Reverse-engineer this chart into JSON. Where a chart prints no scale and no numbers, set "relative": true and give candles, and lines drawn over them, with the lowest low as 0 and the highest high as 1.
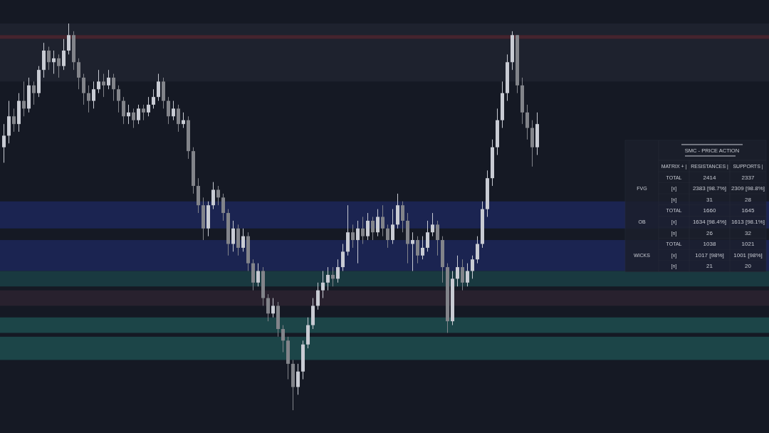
{
  "chart_data": [
    {
      "type": "candlestick",
      "relative": true,
      "colors": [
        "#c8cbd3",
        "#c8cbd3",
        "#82848a",
        "#c8cbd3",
        "#82848a",
        "#c8cbd3",
        "#82848a",
        "#c8cbd3",
        "#c8cbd3",
        "#82848a",
        "#c8cbd3",
        "#82848a",
        "#c8cbd3",
        "#c8cbd3",
        "#82848a",
        "#82848a",
        "#82848a",
        "#82848a",
        "#c8cbd3",
        "#c8cbd3",
        "#82848a",
        "#c8cbd3",
        "#82848a",
        "#82848a",
        "#82848a",
        "#c8cbd3",
        "#82848a",
        "#c8cbd3",
        "#82848a",
        "#c8cbd3",
        "#c8cbd3",
        "#c8cbd3",
        "#82848a",
        "#82848a",
        "#c8cbd3",
        "#82848a",
        "#c8cbd3",
        "#82848a",
        "#82848a",
        "#82848a",
        "#82848a",
        "#c8cbd3",
        "#c8cbd3",
        "#82848a",
        "#82848a",
        "#82848a",
        "#c8cbd3",
        "#82848a",
        "#c8cbd3",
        "#82848a",
        "#82848a",
        "#c8cbd3",
        "#82848a",
        "#82848a",
        "#c8cbd3",
        "#82848a",
        "#82848a",
        "#82848a",
        "#82848a",
        "#c8cbd3",
        "#c8cbd3",
        "#c8cbd3",
        "#c8cbd3",
        "#c8cbd3",
        "#c8cbd3",
        "#c8cbd3",
        "#82848a",
        "#c8cbd3",
        "#c8cbd3",
        "#c8cbd3",
        "#82848a",
        "#c8cbd3",
        "#82848a",
        "#c8cbd3",
        "#82848a",
        "#c8cbd3",
        "#82848a",
        "#82848a",
        "#c8cbd3",
        "#c8cbd3",
        "#82848a",
        "#82848a",
        "#c8cbd3",
        "#82848a",
        "#c8cbd3",
        "#c8cbd3",
        "#c8cbd3",
        "#82848a",
        "#82848a",
        "#82848a",
        "#c8cbd3",
        "#c8cbd3",
        "#82848a",
        "#c8cbd3",
        "#c8cbd3",
        "#c8cbd3",
        "#c8cbd3",
        "#c8cbd3",
        "#c8cbd3",
        "#c8cbd3",
        "#c8cbd3",
        "#c8cbd3",
        "#c8cbd3",
        "#82848a",
        "#82848a",
        "#82848a",
        "#82848a",
        "#c8cbd3"
      ],
      "categories": [
        null,
        null,
        null,
        null,
        null,
        null,
        null,
        null,
        null,
        null,
        null,
        null,
        null,
        null,
        null,
        null,
        null,
        null,
        null,
        null,
        null,
        null,
        null,
        null,
        null,
        null,
        null,
        null,
        null,
        null,
        null,
        null,
        null,
        null,
        null,
        null,
        null,
        null,
        null,
        null,
        null,
        null,
        null,
        null,
        null,
        null,
        null,
        null,
        null,
        null,
        null,
        null,
        null,
        null,
        null,
        null,
        null,
        null,
        null,
        null,
        null,
        null,
        null,
        null,
        null,
        null,
        null,
        null,
        null,
        null,
        null,
        null,
        null,
        null,
        null,
        null,
        null,
        null,
        null,
        null,
        null,
        null,
        null,
        null,
        null,
        null,
        null,
        null,
        null,
        null,
        null,
        null,
        null,
        null,
        null,
        null,
        null,
        null,
        null,
        null,
        null,
        null,
        null,
        null,
        null,
        null,
        null,
        null
      ],
      "ohlc": [
        [
          0.68,
          0.74,
          0.64,
          0.71
        ],
        [
          0.71,
          0.8,
          0.69,
          0.76
        ],
        [
          0.76,
          0.78,
          0.72,
          0.74
        ],
        [
          0.74,
          0.82,
          0.72,
          0.8
        ],
        [
          0.8,
          0.85,
          0.76,
          0.78
        ],
        [
          0.78,
          0.86,
          0.77,
          0.84
        ],
        [
          0.84,
          0.85,
          0.79,
          0.82
        ],
        [
          0.82,
          0.89,
          0.81,
          0.88
        ],
        [
          0.88,
          0.95,
          0.86,
          0.93
        ],
        [
          0.93,
          0.94,
          0.88,
          0.9
        ],
        [
          0.9,
          0.93,
          0.87,
          0.91
        ],
        [
          0.91,
          0.92,
          0.86,
          0.89
        ],
        [
          0.89,
          0.96,
          0.88,
          0.93
        ],
        [
          0.93,
          1.0,
          0.92,
          0.97
        ],
        [
          0.97,
          0.98,
          0.88,
          0.9
        ],
        [
          0.9,
          0.91,
          0.83,
          0.86
        ],
        [
          0.86,
          0.87,
          0.79,
          0.82
        ],
        [
          0.82,
          0.84,
          0.77,
          0.8
        ],
        [
          0.8,
          0.85,
          0.78,
          0.83
        ],
        [
          0.83,
          0.88,
          0.82,
          0.85
        ],
        [
          0.85,
          0.87,
          0.81,
          0.84
        ],
        [
          0.84,
          0.88,
          0.83,
          0.86
        ],
        [
          0.86,
          0.87,
          0.8,
          0.83
        ],
        [
          0.83,
          0.84,
          0.77,
          0.8
        ],
        [
          0.8,
          0.81,
          0.74,
          0.76
        ],
        [
          0.76,
          0.79,
          0.74,
          0.77
        ],
        [
          0.77,
          0.78,
          0.73,
          0.75
        ],
        [
          0.75,
          0.79,
          0.74,
          0.78
        ],
        [
          0.78,
          0.79,
          0.75,
          0.77
        ],
        [
          0.77,
          0.81,
          0.76,
          0.79
        ],
        [
          0.79,
          0.83,
          0.78,
          0.81
        ],
        [
          0.81,
          0.87,
          0.8,
          0.85
        ],
        [
          0.85,
          0.86,
          0.78,
          0.8
        ],
        [
          0.8,
          0.81,
          0.74,
          0.76
        ],
        [
          0.76,
          0.8,
          0.75,
          0.78
        ],
        [
          0.78,
          0.79,
          0.72,
          0.74
        ],
        [
          0.74,
          0.77,
          0.73,
          0.75
        ],
        [
          0.75,
          0.76,
          0.65,
          0.67
        ],
        [
          0.67,
          0.68,
          0.56,
          0.58
        ],
        [
          0.58,
          0.6,
          0.51,
          0.53
        ],
        [
          0.53,
          0.55,
          0.44,
          0.47
        ],
        [
          0.47,
          0.54,
          0.45,
          0.53
        ],
        [
          0.53,
          0.59,
          0.52,
          0.57
        ],
        [
          0.57,
          0.58,
          0.53,
          0.55
        ],
        [
          0.55,
          0.56,
          0.49,
          0.51
        ],
        [
          0.51,
          0.52,
          0.4,
          0.43
        ],
        [
          0.43,
          0.49,
          0.41,
          0.47
        ],
        [
          0.47,
          0.48,
          0.4,
          0.42
        ],
        [
          0.42,
          0.47,
          0.41,
          0.45
        ],
        [
          0.45,
          0.46,
          0.36,
          0.38
        ],
        [
          0.38,
          0.39,
          0.31,
          0.33
        ],
        [
          0.33,
          0.38,
          0.32,
          0.36
        ],
        [
          0.36,
          0.37,
          0.27,
          0.29
        ],
        [
          0.29,
          0.3,
          0.23,
          0.25
        ],
        [
          0.25,
          0.29,
          0.24,
          0.27
        ],
        [
          0.27,
          0.28,
          0.19,
          0.21
        ],
        [
          0.21,
          0.22,
          0.15,
          0.18
        ],
        [
          0.18,
          0.19,
          0.08,
          0.12
        ],
        [
          0.12,
          0.13,
          0.0,
          0.06
        ],
        [
          0.06,
          0.12,
          0.04,
          0.1
        ],
        [
          0.1,
          0.18,
          0.08,
          0.17
        ],
        [
          0.17,
          0.24,
          0.16,
          0.22
        ],
        [
          0.22,
          0.29,
          0.21,
          0.27
        ],
        [
          0.27,
          0.33,
          0.26,
          0.31
        ],
        [
          0.31,
          0.36,
          0.29,
          0.33
        ],
        [
          0.33,
          0.37,
          0.31,
          0.35
        ],
        [
          0.35,
          0.37,
          0.32,
          0.34
        ],
        [
          0.34,
          0.39,
          0.33,
          0.37
        ],
        [
          0.37,
          0.43,
          0.36,
          0.41
        ],
        [
          0.41,
          0.53,
          0.4,
          0.46
        ],
        [
          0.46,
          0.48,
          0.42,
          0.44
        ],
        [
          0.44,
          0.49,
          0.38,
          0.47
        ],
        [
          0.47,
          0.5,
          0.43,
          0.45
        ],
        [
          0.45,
          0.51,
          0.44,
          0.49
        ],
        [
          0.49,
          0.5,
          0.44,
          0.46
        ],
        [
          0.46,
          0.52,
          0.45,
          0.5
        ],
        [
          0.5,
          0.53,
          0.45,
          0.47
        ],
        [
          0.47,
          0.48,
          0.42,
          0.44
        ],
        [
          0.44,
          0.52,
          0.43,
          0.48
        ],
        [
          0.48,
          0.56,
          0.47,
          0.53
        ],
        [
          0.53,
          0.54,
          0.46,
          0.49
        ],
        [
          0.49,
          0.51,
          0.38,
          0.43
        ],
        [
          0.43,
          0.46,
          0.36,
          0.44
        ],
        [
          0.44,
          0.45,
          0.38,
          0.4
        ],
        [
          0.4,
          0.45,
          0.39,
          0.42
        ],
        [
          0.42,
          0.49,
          0.41,
          0.46
        ],
        [
          0.46,
          0.51,
          0.45,
          0.48
        ],
        [
          0.48,
          0.49,
          0.4,
          0.44
        ],
        [
          0.44,
          0.45,
          0.33,
          0.37
        ],
        [
          0.37,
          0.38,
          0.2,
          0.23
        ],
        [
          0.23,
          0.36,
          0.22,
          0.34
        ],
        [
          0.34,
          0.4,
          0.32,
          0.37
        ],
        [
          0.37,
          0.39,
          0.31,
          0.33
        ],
        [
          0.33,
          0.38,
          0.32,
          0.36
        ],
        [
          0.36,
          0.4,
          0.34,
          0.39
        ],
        [
          0.39,
          0.45,
          0.38,
          0.43
        ],
        [
          0.43,
          0.54,
          0.42,
          0.52
        ],
        [
          0.52,
          0.62,
          0.5,
          0.6
        ],
        [
          0.6,
          0.7,
          0.58,
          0.68
        ],
        [
          0.68,
          0.78,
          0.66,
          0.75
        ],
        [
          0.75,
          0.85,
          0.73,
          0.82
        ],
        [
          0.82,
          0.92,
          0.8,
          0.9
        ],
        [
          0.9,
          0.98,
          0.88,
          0.97
        ],
        [
          0.97,
          0.97,
          0.82,
          0.84
        ],
        [
          0.84,
          0.86,
          0.74,
          0.77
        ],
        [
          0.77,
          0.79,
          0.7,
          0.73
        ],
        [
          0.73,
          0.75,
          0.63,
          0.68
        ],
        [
          0.68,
          0.77,
          0.66,
          0.74
        ]
      ],
      "bands": [
        {
          "axis": "y",
          "from": 0.97,
          "to": 1.0,
          "color": "#1f2330"
        },
        {
          "axis": "y",
          "from": 0.96,
          "to": 0.97,
          "color": "#4a2630"
        },
        {
          "axis": "y",
          "from": 0.85,
          "to": 0.96,
          "color": "#1f2330"
        },
        {
          "axis": "y",
          "from": 0.47,
          "to": 0.54,
          "color": "#1c2656"
        },
        {
          "axis": "y",
          "from": 0.36,
          "to": 0.44,
          "color": "#1c2656"
        },
        {
          "axis": "y",
          "from": 0.32,
          "to": 0.36,
          "color": "#1a3d44"
        },
        {
          "axis": "y",
          "from": 0.27,
          "to": 0.31,
          "color": "#2a2230"
        },
        {
          "axis": "y",
          "from": 0.2,
          "to": 0.24,
          "color": "#1d4a4c"
        },
        {
          "axis": "y",
          "from": 0.13,
          "to": 0.19,
          "color": "#1d4a4c"
        }
      ]
    },
    {
      "type": "other",
      "title": "SMC - PRICE ACTION",
      "categories": [
        "MATRIX + |",
        "RESISTANCES |",
        "SUPPORTS |"
      ],
      "y_categories": [
        "TOTAL",
        "[x]",
        "[n]",
        "TOTAL",
        "[x]",
        "[n]",
        "TOTAL",
        "[x]",
        "[n]"
      ],
      "annotations": [
        "FVG",
        "OB",
        "WICKS"
      ],
      "cell_labels": [
        [
          "2414",
          "2337"
        ],
        [
          "2383 [98.7%]",
          "2309 [98.8%]"
        ],
        [
          "31",
          "28"
        ],
        [
          "1660",
          "1645"
        ],
        [
          "1634 [98.4%]",
          "1613 [98.1%]"
        ],
        [
          "26",
          "32"
        ],
        [
          "1038",
          "1021"
        ],
        [
          "1017 [98%]",
          "1001 [98%]"
        ],
        [
          "21",
          "20"
        ]
      ]
    }
  ]
}
